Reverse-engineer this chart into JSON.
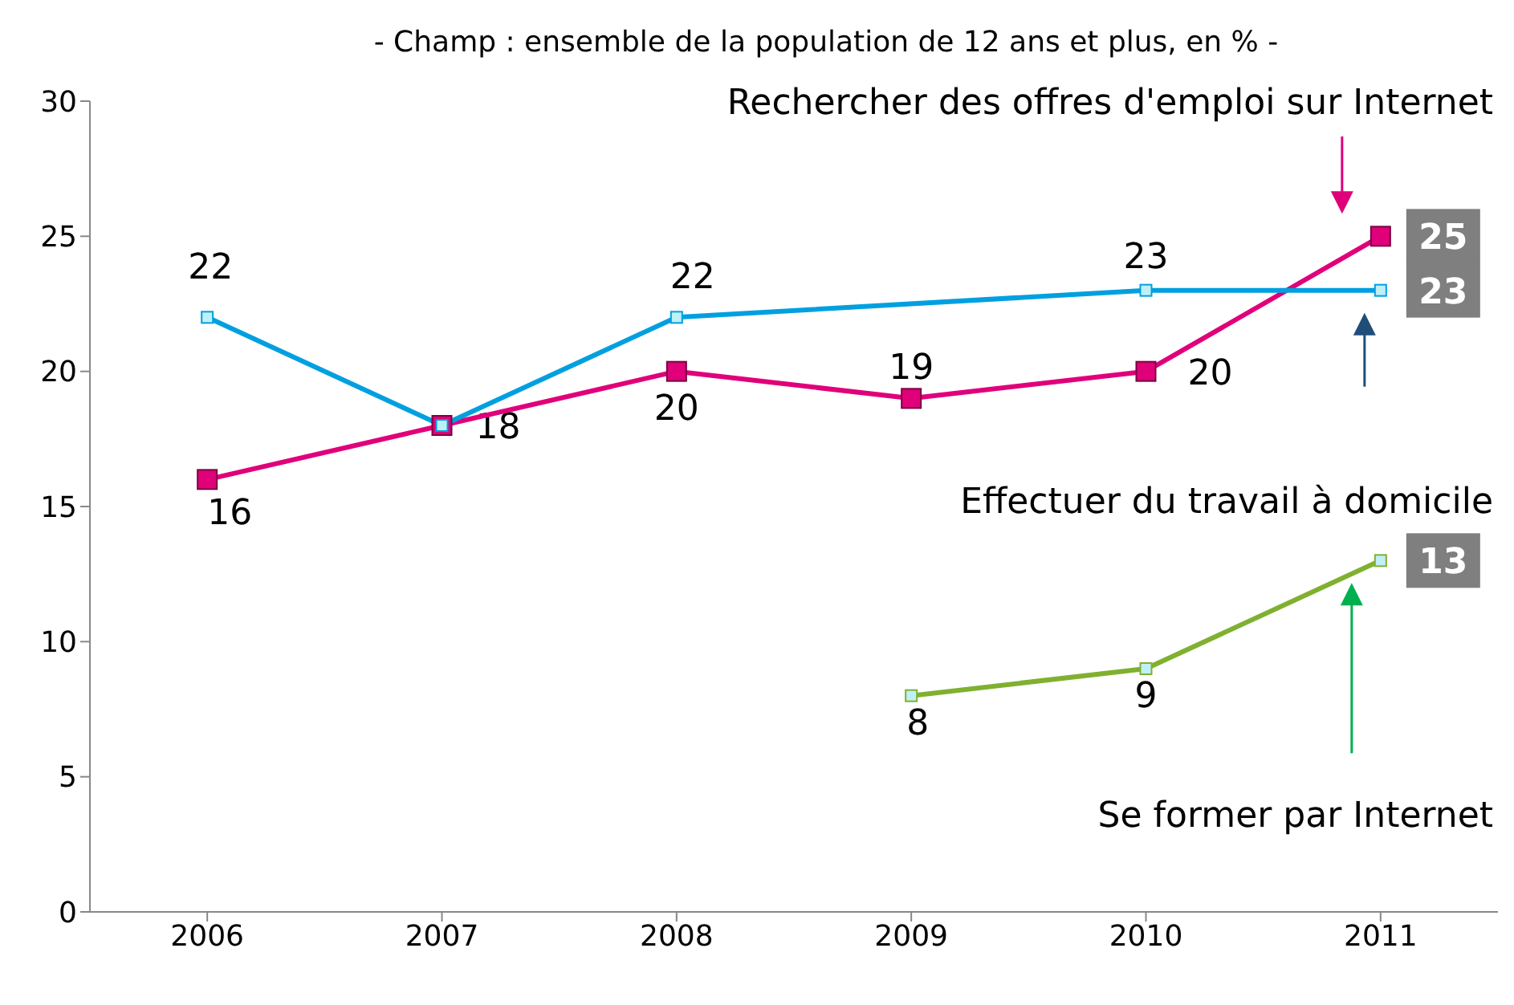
{
  "chart_data": {
    "type": "line",
    "title": "- Champ : ensemble de la population de 12 ans et plus, en % -",
    "categories": [
      "2006",
      "2007",
      "2008",
      "2009",
      "2010",
      "2011"
    ],
    "series": [
      {
        "color": "#e0007a",
        "values": [
          16,
          18,
          20,
          19,
          20,
          25
        ],
        "value_labels": [
          "16",
          "18",
          "20",
          "19",
          "20",
          "25"
        ]
      },
      {
        "color": "#00a0e0",
        "values": [
          22,
          18,
          22,
          null,
          23,
          23
        ],
        "value_labels": [
          "22",
          null,
          "22",
          null,
          "23",
          "23"
        ]
      },
      {
        "color": "#80b030",
        "values": [
          null,
          null,
          null,
          8,
          9,
          13
        ],
        "value_labels": [
          null,
          null,
          null,
          "8",
          "9",
          "13"
        ]
      }
    ],
    "annotations": [
      "Rechercher des offres d'emploi sur Internet",
      "Effectuer du travail à domicile",
      "Se former par Internet"
    ],
    "ylim": [
      0,
      30
    ],
    "yticks": [
      0,
      5,
      10,
      15,
      20,
      25,
      30
    ],
    "grid": false,
    "legend": false,
    "marker": "square",
    "line_style": "solid"
  }
}
